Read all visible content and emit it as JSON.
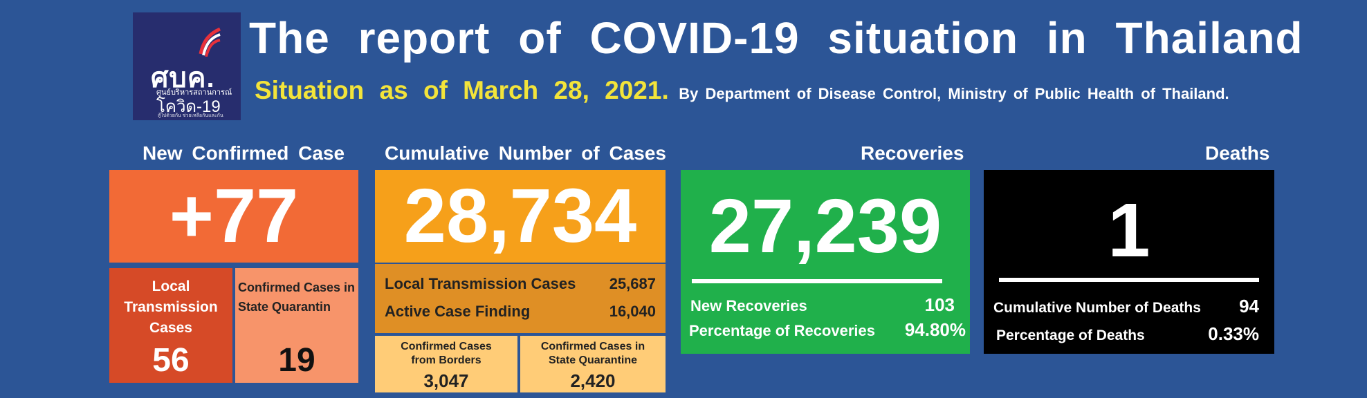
{
  "logo": {
    "text_main": "ศบค.",
    "text_sub": "ศูนย์บริหารสถานการณ์",
    "text_covid": "โควิด-19",
    "text_tag": "สู้ไปด้วยกัน ช่วยเหลือกันและกัน"
  },
  "header": {
    "title": "The report of COVID-19 situation in Thailand",
    "date": "Situation as of March 28, 2021.",
    "source": "By Department of Disease Control, Ministry of Public Health of Thailand."
  },
  "new_confirmed": {
    "heading": "New Confirmed Case",
    "value": "+77",
    "local_label": "Local Transmission Cases",
    "local_value": "56",
    "quarantine_label": "Confirmed Cases in State Quarantin",
    "quarantine_value": "19"
  },
  "cumulative": {
    "heading": "Cumulative Number of Cases",
    "value": "28,734",
    "local_label": "Local Transmission Cases",
    "local_value": "25,687",
    "active_label": "Active Case Finding",
    "active_value": "16,040",
    "borders_label": "Confirmed Cases from Borders",
    "borders_value": "3,047",
    "quarantine_label": "Confirmed Cases in State Quarantine",
    "quarantine_value": "2,420"
  },
  "recoveries": {
    "heading": "Recoveries",
    "value": "27,239",
    "new_label": "New Recoveries",
    "new_value": "103",
    "pct_label": "Percentage of Recoveries",
    "pct_value": "94.80%"
  },
  "deaths": {
    "heading": "Deaths",
    "value": "1",
    "cum_label": "Cumulative Number of Deaths",
    "cum_value": "94",
    "pct_label": "Percentage of Deaths",
    "pct_value": "0.33%"
  },
  "colors": {
    "background": "#2c5596",
    "orange_main": "#f26a36",
    "orange_dark": "#d64a27",
    "orange_light": "#f7946a",
    "amber_main": "#f6a01a",
    "amber_dark": "#df8f25",
    "amber_light": "#ffcc77",
    "green": "#20b04b",
    "black": "#000000",
    "yellow_text": "#f3e43a"
  }
}
